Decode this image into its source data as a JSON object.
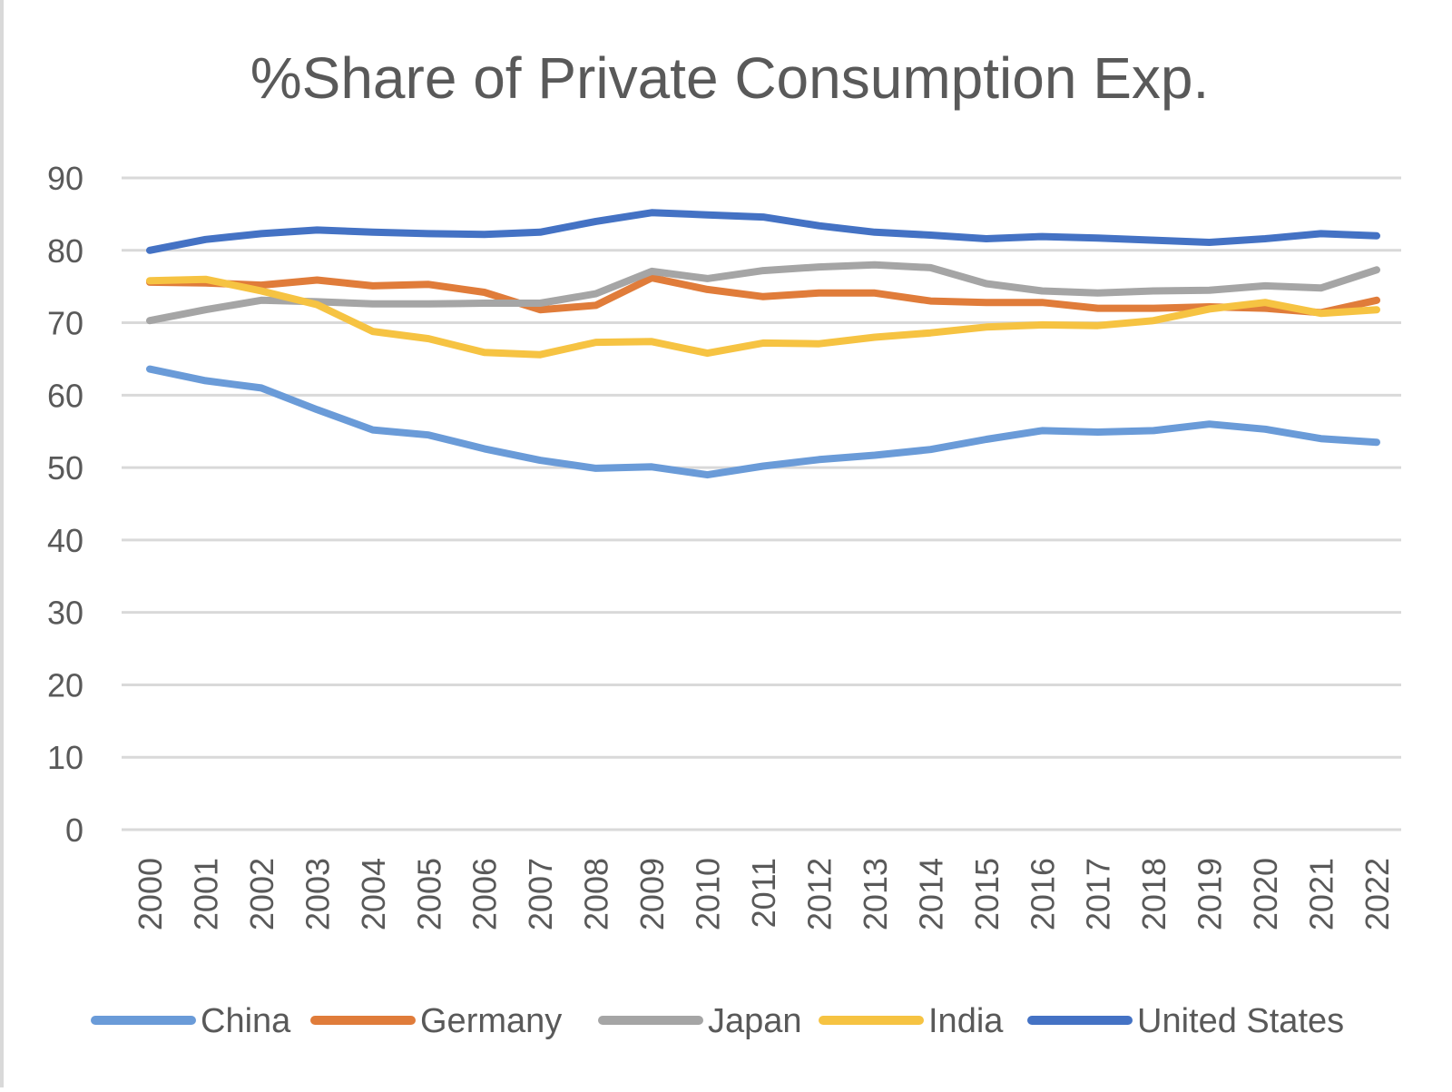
{
  "chart_data": {
    "type": "line",
    "title": "%Share of Private Consumption Exp.",
    "xlabel": "",
    "ylabel": "",
    "ylim": [
      0,
      90
    ],
    "yticks": [
      "0",
      "10",
      "20",
      "30",
      "40",
      "50",
      "60",
      "70",
      "80",
      "90"
    ],
    "x": [
      "2000",
      "2001",
      "2002",
      "2003",
      "2004",
      "2005",
      "2006",
      "2007",
      "2008",
      "2009",
      "2010",
      "2011",
      "2012",
      "2013",
      "2014",
      "2015",
      "2016",
      "2017",
      "2018",
      "2019",
      "2020",
      "2021",
      "2022"
    ],
    "grid": true,
    "legend": "bottom",
    "series": [
      {
        "name": "China",
        "color": "#6A9BD8",
        "values": [
          63.6,
          62.0,
          61.0,
          58.0,
          55.2,
          54.5,
          52.6,
          51.0,
          49.9,
          50.1,
          49.0,
          50.2,
          51.1,
          51.7,
          52.5,
          53.9,
          55.1,
          54.9,
          55.1,
          56.0,
          55.3,
          54.0,
          53.5
        ]
      },
      {
        "name": "Germany",
        "color": "#E07C3A",
        "values": [
          75.6,
          75.5,
          75.2,
          75.9,
          75.1,
          75.3,
          74.2,
          71.8,
          72.4,
          76.2,
          74.6,
          73.6,
          74.1,
          74.1,
          73.0,
          72.8,
          72.8,
          72.0,
          72.0,
          72.2,
          72.0,
          71.4,
          73.1
        ]
      },
      {
        "name": "Japan",
        "color": "#A5A5A5",
        "values": [
          70.3,
          71.8,
          73.1,
          72.9,
          72.6,
          72.6,
          72.7,
          72.7,
          74.0,
          77.1,
          76.1,
          77.2,
          77.7,
          78.0,
          77.6,
          75.4,
          74.4,
          74.1,
          74.4,
          74.5,
          75.1,
          74.8,
          77.3
        ]
      },
      {
        "name": "India",
        "color": "#F6C342",
        "values": [
          75.8,
          76.0,
          74.4,
          72.5,
          68.8,
          67.8,
          65.9,
          65.6,
          67.3,
          67.4,
          65.8,
          67.2,
          67.1,
          68.0,
          68.6,
          69.4,
          69.7,
          69.6,
          70.3,
          71.9,
          72.8,
          71.3,
          71.8
        ]
      },
      {
        "name": "United States",
        "color": "#4472C4",
        "values": [
          80.0,
          81.5,
          82.3,
          82.8,
          82.5,
          82.3,
          82.2,
          82.5,
          84.0,
          85.2,
          84.9,
          84.6,
          83.4,
          82.5,
          82.1,
          81.6,
          81.9,
          81.7,
          81.4,
          81.1,
          81.6,
          82.3,
          82.0
        ]
      }
    ]
  }
}
